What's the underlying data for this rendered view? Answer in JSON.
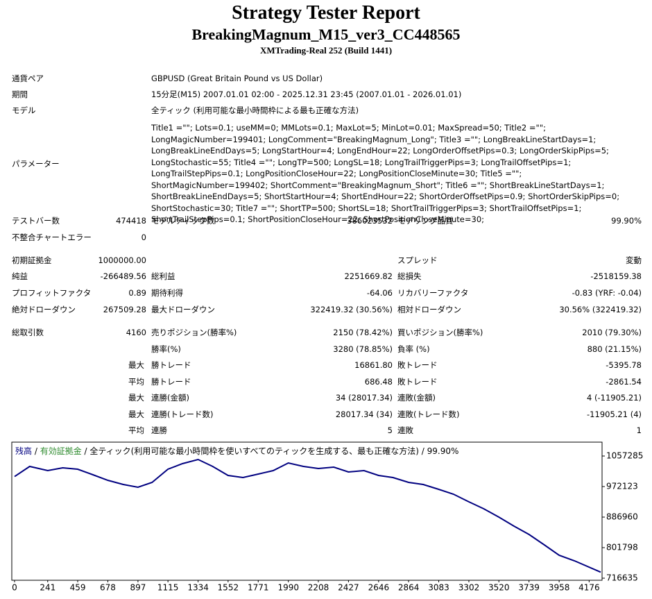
{
  "header": {
    "title": "Strategy Tester Report",
    "subtitle": "BreakingMagnum_M15_ver3_CC448565",
    "build": "XMTrading-Real 252 (Build 1441)"
  },
  "info": [
    {
      "label": "通貨ペア",
      "value": "GBPUSD (Great Britain Pound vs US Dollar)"
    },
    {
      "label": "期間",
      "value": "15分足(M15) 2007.01.01 02:00 - 2025.12.31 23:45 (2007.01.01 - 2026.01.01)"
    },
    {
      "label": "モデル",
      "value": "全ティック (利用可能な最小時間枠による最も正確な方法)"
    },
    {
      "label": "パラメーター",
      "value": "Title1    =\"\"; Lots=0.1; useMM=0; MMLots=0.1; MaxLot=5; MinLot=0.01; MaxSpread=50; Title2    =\"\"; LongMagicNumber=199401; LongComment=\"BreakingMagnum_Long\"; Title3    =\"\"; LongBreakLineStartDays=1; LongBreakLineEndDays=5; LongStartHour=4; LongEndHour=22; LongOrderOffsetPips=0.3; LongOrderSkipPips=5; LongStochastic=55; Title4    =\"\"; LongTP=500; LongSL=18; LongTrailTriggerPips=3; LongTrailOffsetPips=1; LongTrailStepPips=0.1; LongPositionCloseHour=22; LongPositionCloseMinute=30; Title5    =\"\"; ShortMagicNumber=199402; ShortComment=\"BreakingMagnum_Short\"; Title6    =\"\"; ShortBreakLineStartDays=1; ShortBreakLineEndDays=5; ShortStartHour=4; ShortEndHour=22; ShortOrderOffsetPips=0.9; ShortOrderSkipPips=0; ShortStochastic=30; Title7    =\"\"; ShortTP=500; ShortSL=18; ShortTrailTriggerPips=3; ShortTrailOffsetPips=1; ShortTrailStepPips=0.1; ShortPositionCloseHour=22; ShortPositionCloseMinute=30;"
    }
  ],
  "stats": [
    {
      "c1": {
        "label": "テストバー数",
        "value": "474418"
      },
      "c2": {
        "label": "モデルティック数",
        "value": "386023532"
      },
      "c3": {
        "label": "モデリング品質",
        "value": "99.90%"
      }
    },
    {
      "c1": {
        "label": "不整合チャートエラー",
        "value": "0"
      }
    },
    {
      "c1": {
        "label": "初期証拠金",
        "value": "1000000.00"
      },
      "c3": {
        "label": "スプレッド",
        "value": "変動"
      }
    },
    {
      "c1": {
        "label": "純益",
        "value": "-266489.56"
      },
      "c2": {
        "label": "総利益",
        "value": "2251669.82"
      },
      "c3": {
        "label": "総損失",
        "value": "-2518159.38"
      }
    },
    {
      "c1": {
        "label": "プロフィットファクタ",
        "value": "0.89"
      },
      "c2": {
        "label": "期待利得",
        "value": "-64.06"
      },
      "c3": {
        "label": "リカバリーファクタ",
        "value": "-0.83 (YRF: -0.04)"
      }
    },
    {
      "c1": {
        "label": "絶対ドローダウン",
        "value": "267509.28"
      },
      "c2": {
        "label": "最大ドローダウン",
        "value": "322419.32 (30.56%)"
      },
      "c3": {
        "label": "相対ドローダウン",
        "value": "30.56% (322419.32)"
      }
    },
    {
      "c1": {
        "label": "総取引数",
        "value": "4160"
      },
      "c2": {
        "label": "売りポジション(勝率%)",
        "value": "2150 (78.42%)"
      },
      "c3": {
        "label": "買いポジション(勝率%)",
        "value": "2010 (79.30%)"
      }
    },
    {
      "c2": {
        "label": "勝率(%)",
        "value": "3280 (78.85%)"
      },
      "c3": {
        "label": "負率 (%)",
        "value": "880 (21.15%)"
      }
    },
    {
      "prefix": "最大",
      "c2": {
        "label": "勝トレード",
        "value": "16861.80"
      },
      "c3": {
        "label": "敗トレード",
        "value": "-5395.78"
      }
    },
    {
      "prefix": "平均",
      "c2": {
        "label": "勝トレード",
        "value": "686.48"
      },
      "c3": {
        "label": "敗トレード",
        "value": "-2861.54"
      }
    },
    {
      "prefix": "最大",
      "c2": {
        "label": "連勝(金額)",
        "value": "34 (28017.34)"
      },
      "c3": {
        "label": "連敗(金額)",
        "value": "4 (-11905.21)"
      }
    },
    {
      "prefix": "最大",
      "c2": {
        "label": "連勝(トレード数)",
        "value": "28017.34 (34)"
      },
      "c3": {
        "label": "連敗(トレード数)",
        "value": "-11905.21 (4)"
      }
    },
    {
      "prefix": "平均",
      "c2": {
        "label": "連勝",
        "value": "5"
      },
      "c3": {
        "label": "連敗",
        "value": "1"
      }
    }
  ],
  "chart_data": {
    "type": "line",
    "legend_separator": " / ",
    "equity_label": "有効証拠金",
    "equity_color": "#2e8b2e",
    "note": "全ティック(利用可能な最小時間枠を使いすべてのティックを生成する、最も正確な方法) / 99.90%",
    "x": [
      0,
      110,
      241,
      350,
      459,
      570,
      678,
      790,
      897,
      1000,
      1115,
      1220,
      1334,
      1440,
      1552,
      1660,
      1771,
      1880,
      1990,
      2100,
      2208,
      2320,
      2427,
      2540,
      2646,
      2750,
      2864,
      2970,
      3083,
      3190,
      3302,
      3410,
      3520,
      3630,
      3739,
      3850,
      3958,
      4070,
      4260
    ],
    "series": [
      {
        "name": "残高",
        "color": "#000080",
        "values": [
          1000000,
          1028251,
          1016638,
          1024380,
          1020509,
          1005025,
          989541,
          977928,
          970186,
          983734,
          1020509,
          1035993,
          1047606,
          1028251,
          1003089,
          997283,
          1006960,
          1016638,
          1037928,
          1028251,
          1022444,
          1026315,
          1012767,
          1016638,
          1003089,
          997283,
          983734,
          977928,
          964379,
          950831,
          929540,
          910185,
          886959,
          861798,
          838572,
          809539,
          780507,
          765023,
          733510
        ]
      }
    ],
    "xlim": [
      -20,
      4270
    ],
    "ylim": [
      710829,
      1095995
    ],
    "xticks": [
      0,
      241,
      459,
      678,
      897,
      1115,
      1334,
      1552,
      1771,
      1990,
      2208,
      2427,
      2646,
      2864,
      3083,
      3302,
      3520,
      3739,
      3958,
      4176
    ],
    "yticks": [
      716635,
      801798,
      886960,
      972123,
      1057285
    ]
  }
}
